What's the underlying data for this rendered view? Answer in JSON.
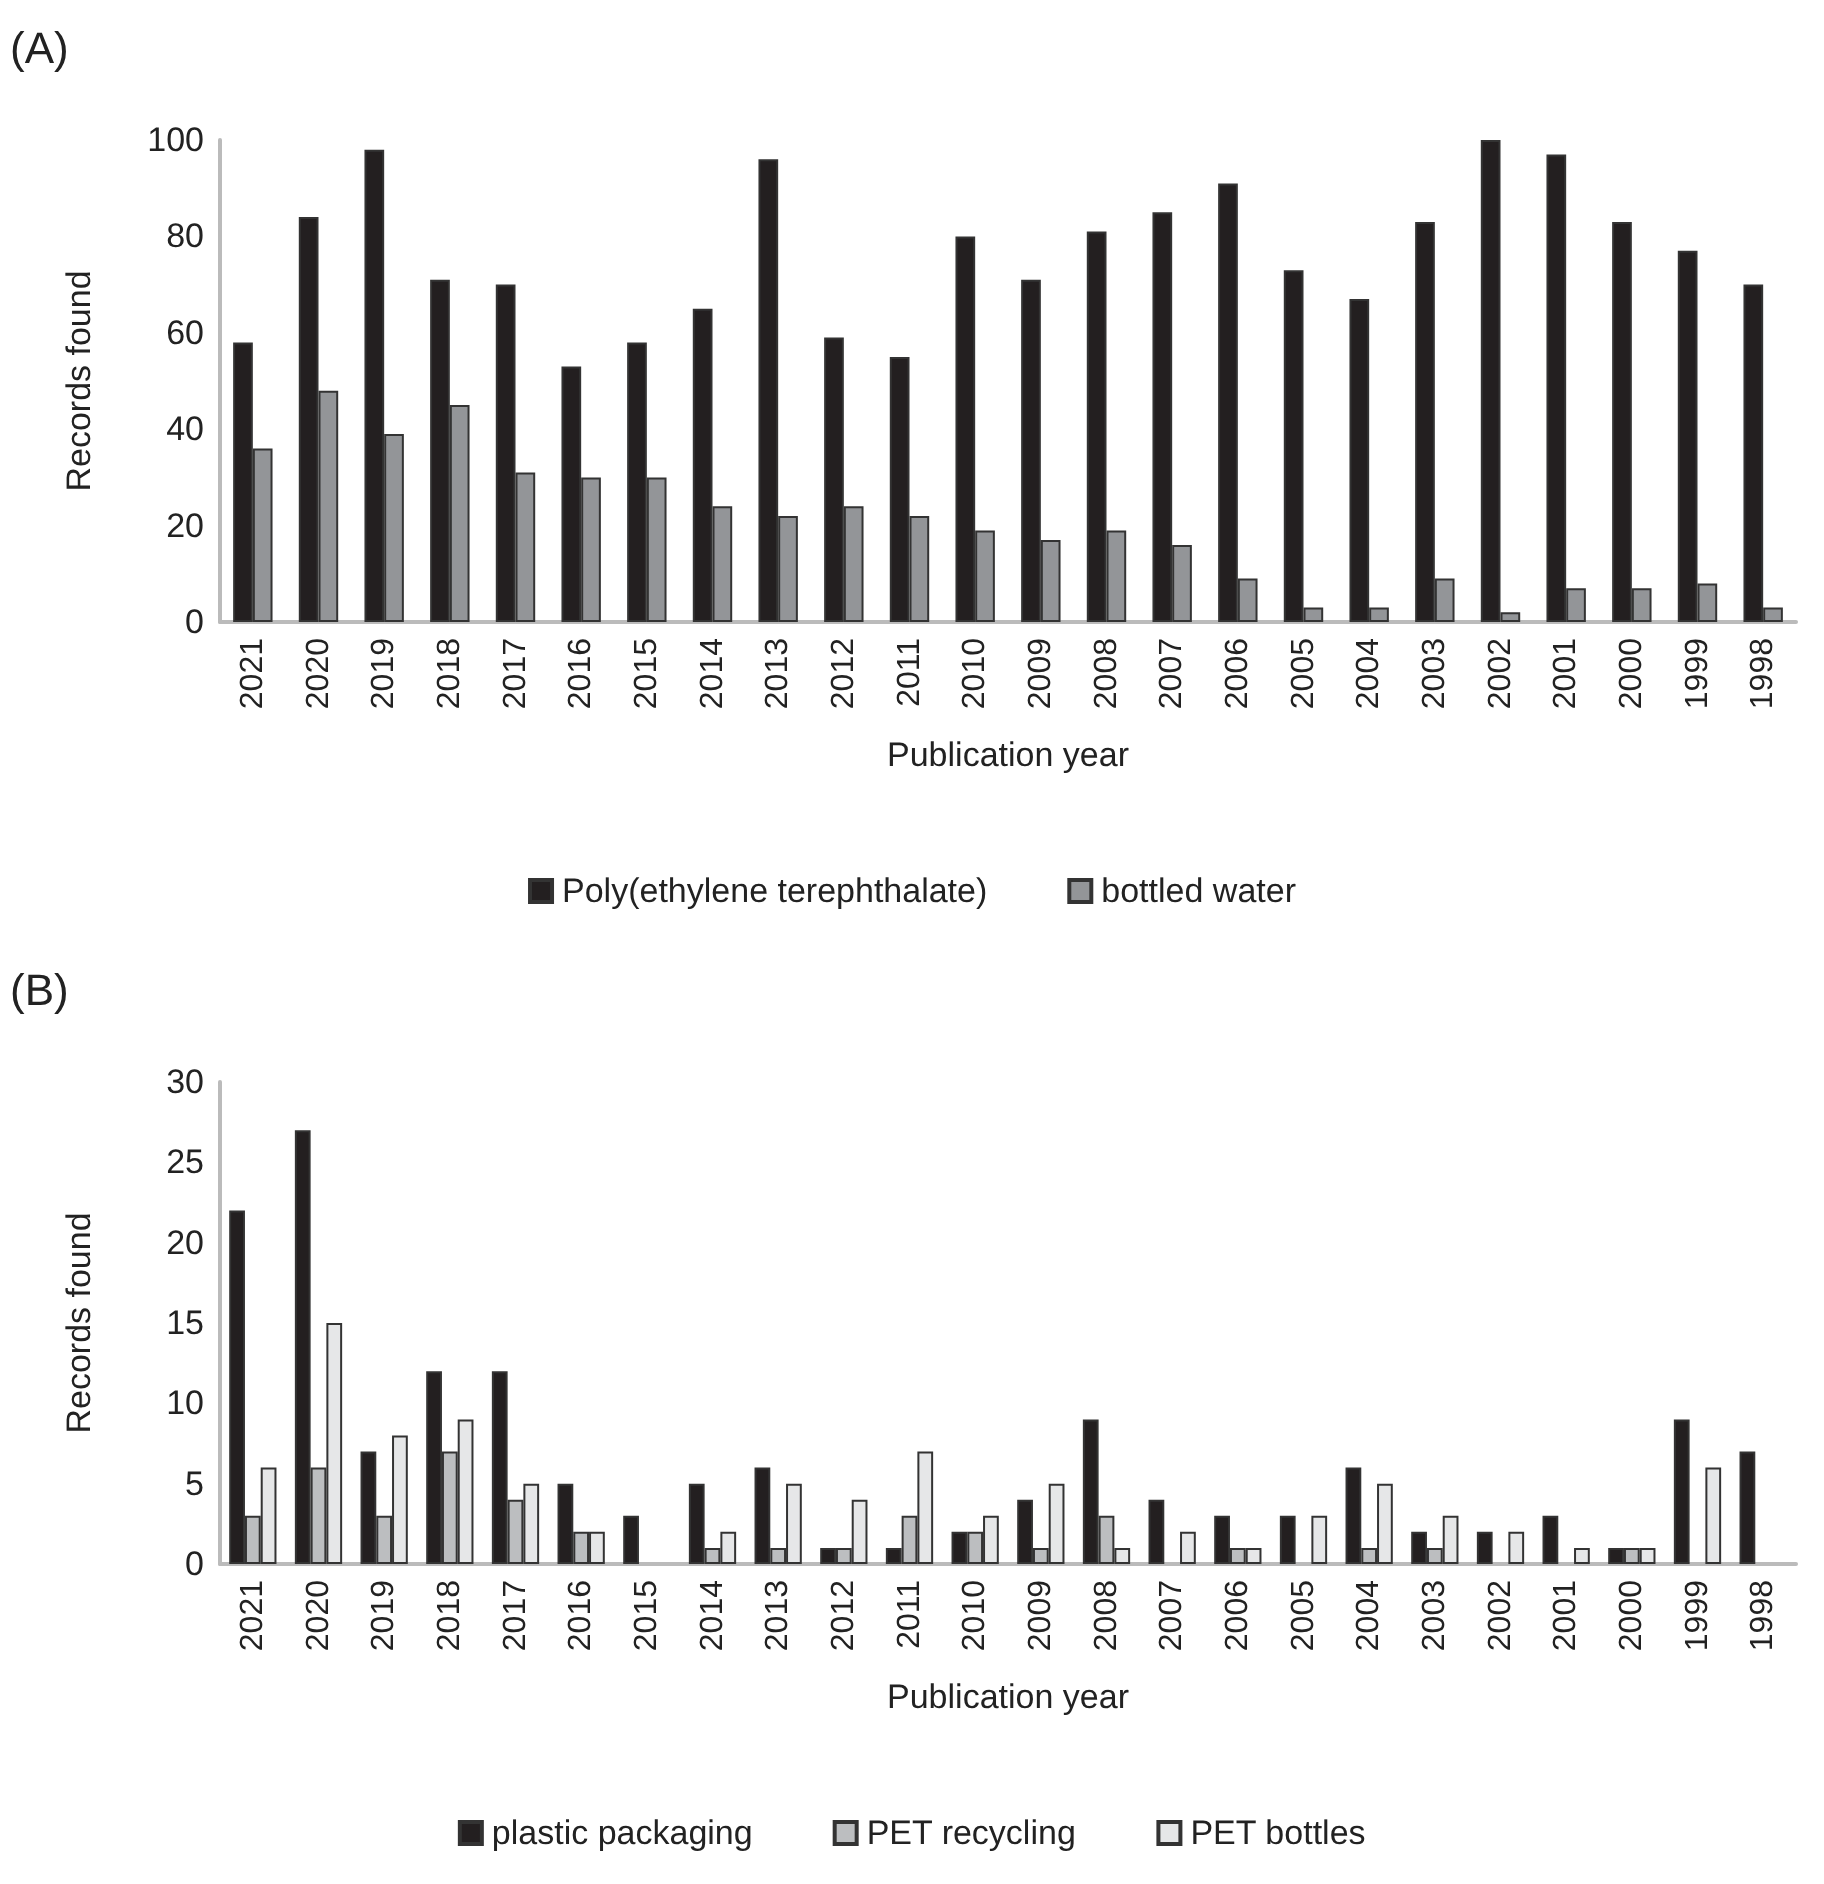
{
  "chart_data": [
    {
      "type": "bar",
      "title": "(A)",
      "xlabel": "Publication year",
      "ylabel": "Records found",
      "categories": [
        "2021",
        "2020",
        "2019",
        "2018",
        "2017",
        "2016",
        "2015",
        "2014",
        "2013",
        "2012",
        "2011",
        "2010",
        "2009",
        "2008",
        "2007",
        "2006",
        "2005",
        "2004",
        "2003",
        "2002",
        "2001",
        "2000",
        "1999",
        "1998"
      ],
      "series": [
        {
          "name": "Poly(ethylene terephthalate)",
          "color": "#231f20",
          "values": [
            58,
            84,
            98,
            71,
            70,
            53,
            58,
            65,
            96,
            59,
            55,
            80,
            71,
            81,
            85,
            91,
            73,
            67,
            83,
            100,
            97,
            83,
            77,
            70
          ]
        },
        {
          "name": "bottled water",
          "color": "#939598",
          "values": [
            36,
            48,
            39,
            45,
            31,
            30,
            30,
            24,
            22,
            24,
            22,
            19,
            17,
            19,
            16,
            9,
            3,
            3,
            9,
            2,
            7,
            7,
            8,
            3
          ]
        }
      ],
      "ylim": [
        0,
        100
      ],
      "yticks": [
        0,
        20,
        40,
        60,
        80,
        100
      ],
      "grid": false,
      "legend": "bottom"
    },
    {
      "type": "bar",
      "title": "(B)",
      "xlabel": "Publication year",
      "ylabel": "Records found",
      "categories": [
        "2021",
        "2020",
        "2019",
        "2018",
        "2017",
        "2016",
        "2015",
        "2014",
        "2013",
        "2012",
        "2011",
        "2010",
        "2009",
        "2008",
        "2007",
        "2006",
        "2005",
        "2004",
        "2003",
        "2002",
        "2001",
        "2000",
        "1999",
        "1998"
      ],
      "series": [
        {
          "name": "plastic packaging",
          "color": "#231f20",
          "values": [
            22,
            27,
            7,
            12,
            12,
            5,
            3,
            5,
            6,
            1,
            1,
            2,
            4,
            9,
            4,
            3,
            3,
            6,
            2,
            2,
            3,
            1,
            9,
            7
          ]
        },
        {
          "name": "PET recycling",
          "color": "#bcbec0",
          "values": [
            3,
            6,
            3,
            7,
            4,
            2,
            0,
            1,
            1,
            1,
            3,
            2,
            1,
            3,
            0,
            1,
            0,
            1,
            1,
            0,
            0,
            1,
            0,
            0
          ]
        },
        {
          "name": "PET bottles",
          "color": "#e6e7e8",
          "values": [
            6,
            15,
            8,
            9,
            5,
            2,
            0,
            2,
            5,
            4,
            7,
            3,
            5,
            1,
            2,
            1,
            3,
            5,
            3,
            2,
            1,
            1,
            6,
            0
          ]
        }
      ],
      "ylim": [
        0,
        30
      ],
      "yticks": [
        0,
        5,
        10,
        15,
        20,
        25,
        30
      ],
      "grid": false,
      "legend": "bottom"
    }
  ]
}
